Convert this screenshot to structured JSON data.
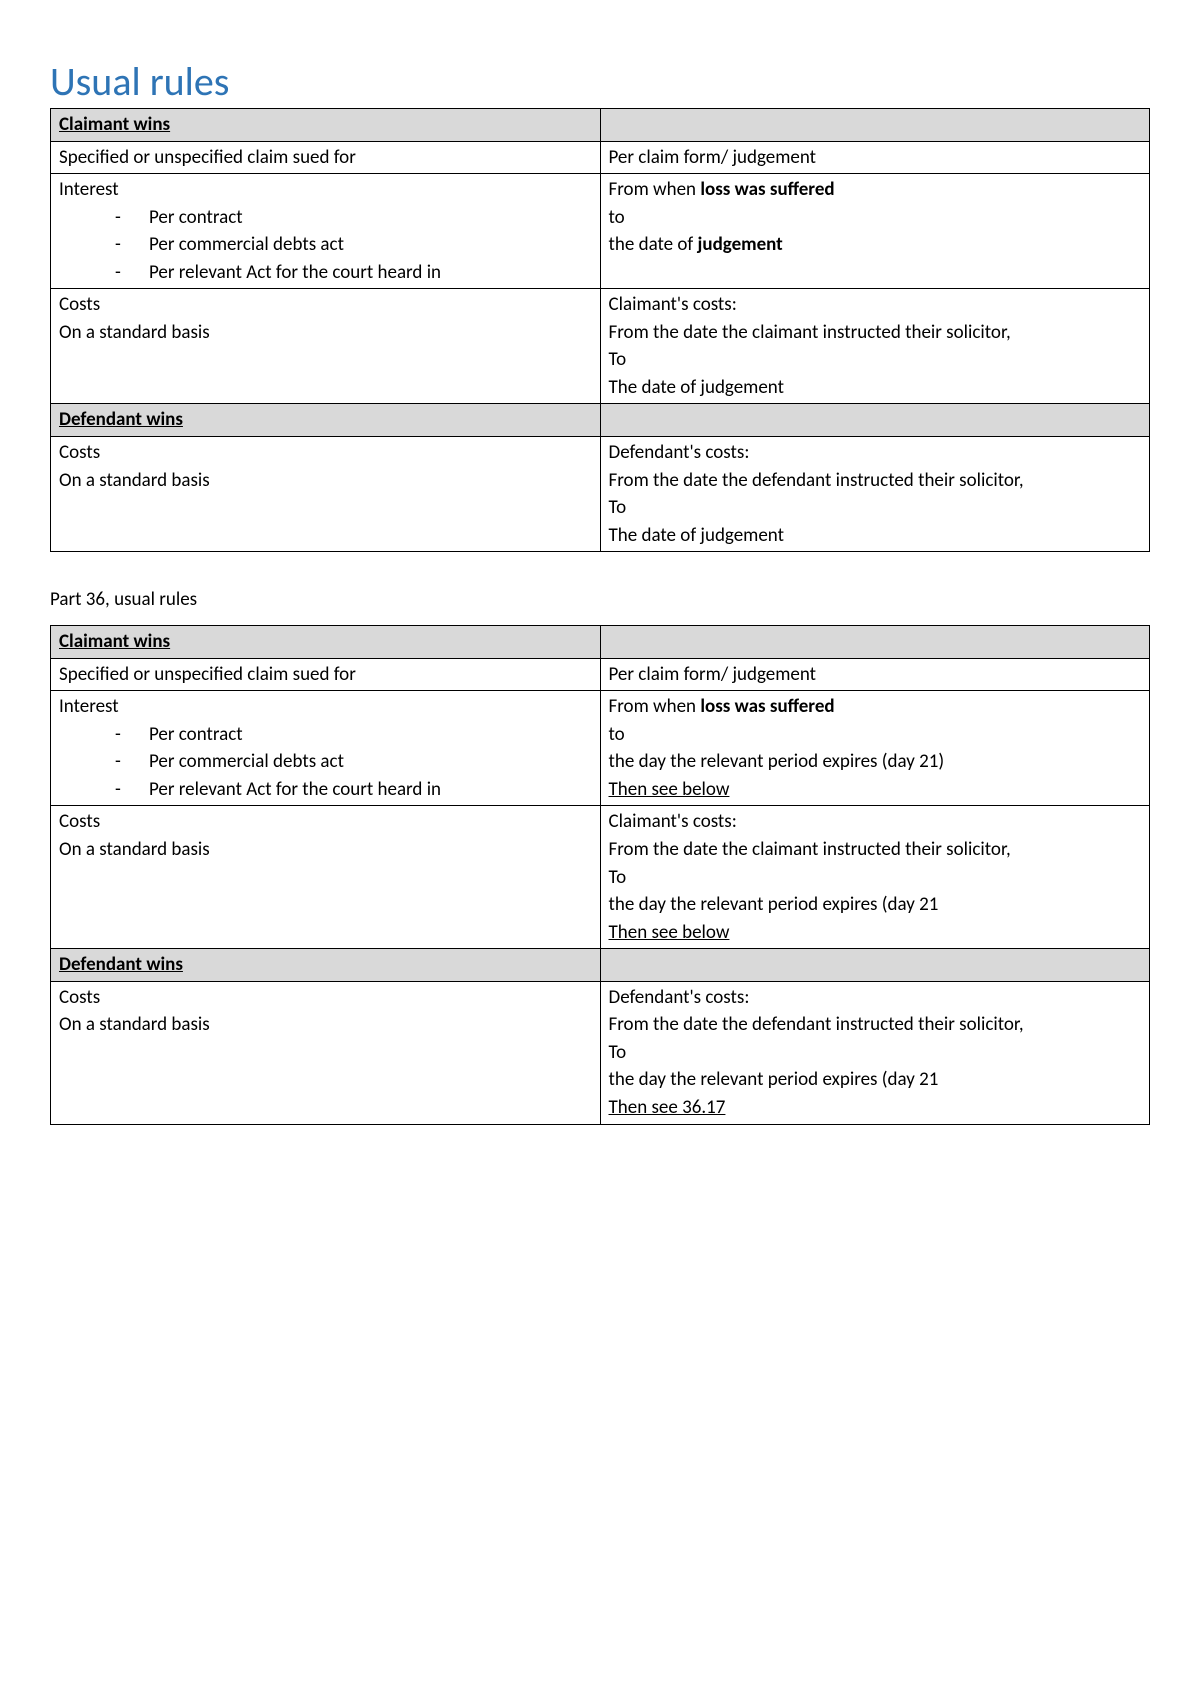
{
  "title": "Usual rules",
  "table1": {
    "claimant_header": "Claimant wins",
    "row_specified": {
      "left": "Specified or unspecified claim sued for",
      "right": "Per claim form/ judgement"
    },
    "row_interest": {
      "left_title": "Interest",
      "bullets": [
        "Per contract",
        "Per commercial debts act",
        "Per relevant Act for the court heard in"
      ],
      "right_l1_a": "From when ",
      "right_l1_b": "loss was suffered",
      "right_l2": "to",
      "right_l3_a": "the date of ",
      "right_l3_b": "judgement"
    },
    "row_costs_claimant": {
      "left_l1": "Costs",
      "left_l2": "On a standard basis",
      "right_l1": "Claimant's costs:",
      "right_l2": "From the date the claimant instructed their solicitor,",
      "right_l3": "To",
      "right_l4": "The date of judgement"
    },
    "defendant_header": "Defendant wins",
    "row_costs_defendant": {
      "left_l1": "Costs",
      "left_l2": "On a standard basis",
      "right_l1": "Defendant's costs:",
      "right_l2": "From the date the defendant instructed their solicitor,",
      "right_l3": "To",
      "right_l4": "The date of judgement"
    }
  },
  "subheading": "Part 36, usual rules",
  "table2": {
    "claimant_header": "Claimant wins",
    "row_specified": {
      "left": "Specified or unspecified claim sued for",
      "right": "Per claim form/ judgement"
    },
    "row_interest": {
      "left_title": "Interest",
      "bullets": [
        "Per contract",
        "Per commercial debts act",
        "Per relevant Act for the court heard in"
      ],
      "right_l1_a": "From when ",
      "right_l1_b": "loss was suffered",
      "right_l2": "to",
      "right_l3": "the day the relevant period expires (day 21)",
      "right_l4": "Then see below"
    },
    "row_costs_claimant": {
      "left_l1": "Costs",
      "left_l2": "On a standard basis",
      "right_l1": "Claimant's costs:",
      "right_l2": "From the date the claimant instructed their solicitor,",
      "right_l3": "To",
      "right_l4": "the day the relevant period expires (day 21",
      "right_l5": "Then see below"
    },
    "defendant_header": "Defendant wins",
    "row_costs_defendant": {
      "left_l1": "Costs",
      "left_l2": "On a standard basis",
      "right_l1": "Defendant's costs:",
      "right_l2": "From the date the defendant instructed their solicitor,",
      "right_l3": "To",
      "right_l4": "the day the relevant period expires (day 21",
      "right_l5": "Then see 36.17"
    }
  }
}
